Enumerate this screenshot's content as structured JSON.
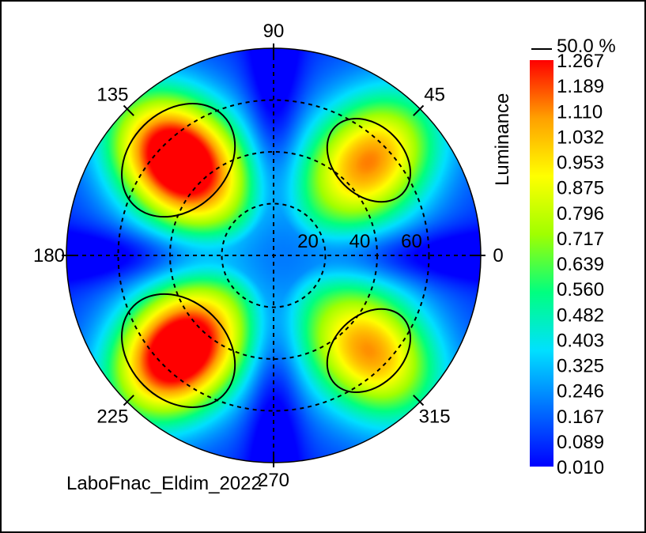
{
  "chart_data": {
    "type": "heatmap",
    "subtype": "polar-conoscope",
    "title": "",
    "source_label": "LaboFnac_Eldim_2022",
    "colorbar": {
      "label": "Luminance",
      "contour_label": "50.0 %",
      "ticks": [
        "1.267",
        "1.189",
        "1.110",
        "1.032",
        "0.953",
        "0.875",
        "0.796",
        "0.717",
        "0.639",
        "0.560",
        "0.482",
        "0.403",
        "0.325",
        "0.246",
        "0.167",
        "0.089",
        "0.010"
      ],
      "min": 0.01,
      "max": 1.267,
      "colors": [
        "#0000ff",
        "#0070ff",
        "#00e0ff",
        "#00ff80",
        "#a0ff00",
        "#ffff00",
        "#ffa000",
        "#ff0000"
      ]
    },
    "azimuth_labels": [
      {
        "angle": 0,
        "text": "0"
      },
      {
        "angle": 45,
        "text": "45"
      },
      {
        "angle": 90,
        "text": "90"
      },
      {
        "angle": 135,
        "text": "135"
      },
      {
        "angle": 180,
        "text": "180"
      },
      {
        "angle": 225,
        "text": "225"
      },
      {
        "angle": 270,
        "text": "270"
      },
      {
        "angle": 315,
        "text": "315"
      }
    ],
    "radial_rings": [
      {
        "value": 20,
        "text": "20"
      },
      {
        "value": 40,
        "text": "40"
      },
      {
        "value": 60,
        "text": "60"
      }
    ],
    "radial_max": 80,
    "lobes": [
      {
        "azimuth": 135,
        "inclination": 52,
        "peak": 1.267
      },
      {
        "azimuth": 225,
        "inclination": 52,
        "peak": 1.24
      },
      {
        "azimuth": 45,
        "inclination": 52,
        "peak": 0.82
      },
      {
        "azimuth": 315,
        "inclination": 52,
        "peak": 0.8
      }
    ]
  }
}
